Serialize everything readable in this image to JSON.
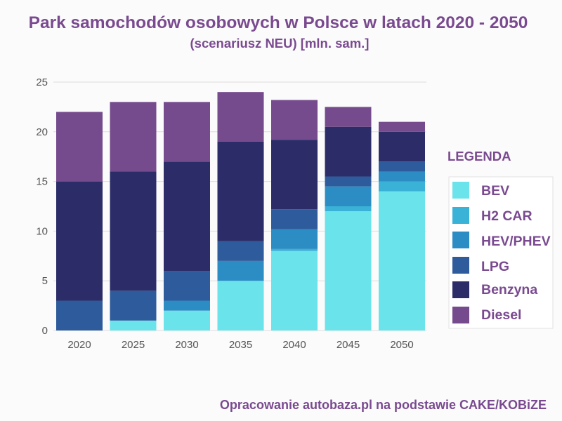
{
  "source": "Opracowanie autobaza.pl na podstawie CAKE/KOBiZE",
  "legend": {
    "title": "LEGENDA"
  },
  "colors": {
    "accent": "#7a4a90",
    "tick_text": "#555555",
    "grid": "#dcdcdc"
  },
  "chart_data": {
    "type": "bar",
    "stacked": true,
    "title": "Park samochodów osobowych w Polsce w latach 2020 - 2050",
    "subtitle": "(scenariusz NEU) [mln. sam.]",
    "categories": [
      "2020",
      "2025",
      "2030",
      "2035",
      "2040",
      "2045",
      "2050"
    ],
    "series": [
      {
        "name": "BEV",
        "color": "#6ae3ea",
        "values": [
          0,
          1,
          2,
          5,
          8,
          12,
          14
        ]
      },
      {
        "name": "H2 CAR",
        "color": "#3ab2d8",
        "values": [
          0,
          0,
          0,
          0,
          0.2,
          0.5,
          1
        ]
      },
      {
        "name": "HEV/PHEV",
        "color": "#2b8dc3",
        "values": [
          0,
          0,
          1,
          2,
          2,
          2,
          1
        ]
      },
      {
        "name": "LPG",
        "color": "#2d5b9c",
        "values": [
          3,
          3,
          3,
          2,
          2,
          1,
          1
        ]
      },
      {
        "name": "Benzyna",
        "color": "#2c2d68",
        "values": [
          12,
          12,
          11,
          10,
          7,
          5,
          3
        ]
      },
      {
        "name": "Diesel",
        "color": "#754b8d",
        "values": [
          7,
          7,
          6,
          5,
          4,
          2,
          1
        ]
      }
    ],
    "ylim": [
      0,
      25
    ],
    "yticks": [
      0,
      5,
      10,
      15,
      20,
      25
    ],
    "grid": true,
    "legend_position": "right"
  }
}
